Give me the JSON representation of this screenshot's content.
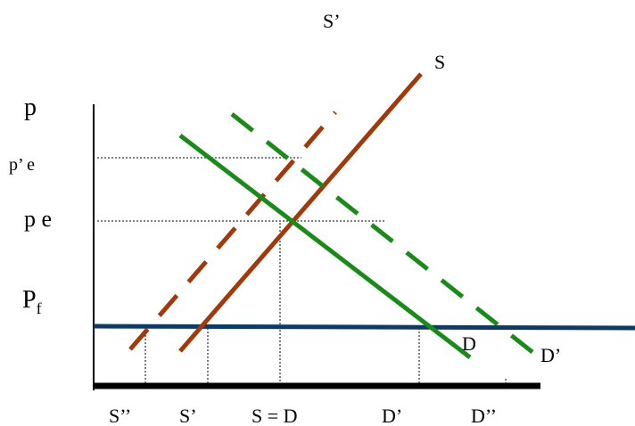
{
  "labels": {
    "top_s_prime": "S’",
    "s_curve": "S",
    "d_curve": "D",
    "d_prime_curve": "D’"
  },
  "y_axis_labels": {
    "p": "p",
    "p_prime_e": "p’ e",
    "p_e": "p e",
    "p_f_main": "P",
    "p_f_sub": "f"
  },
  "x_axis_labels": {
    "s_double_prime": "S’’",
    "s_prime": "S’",
    "s_equals_d": "S = D",
    "d_prime": "D’",
    "d_double_prime": "D’’"
  },
  "colors": {
    "supply": "#a0390c",
    "demand": "#1a8a1a",
    "price_floor": "#0f3a66",
    "axis": "#000000"
  }
}
